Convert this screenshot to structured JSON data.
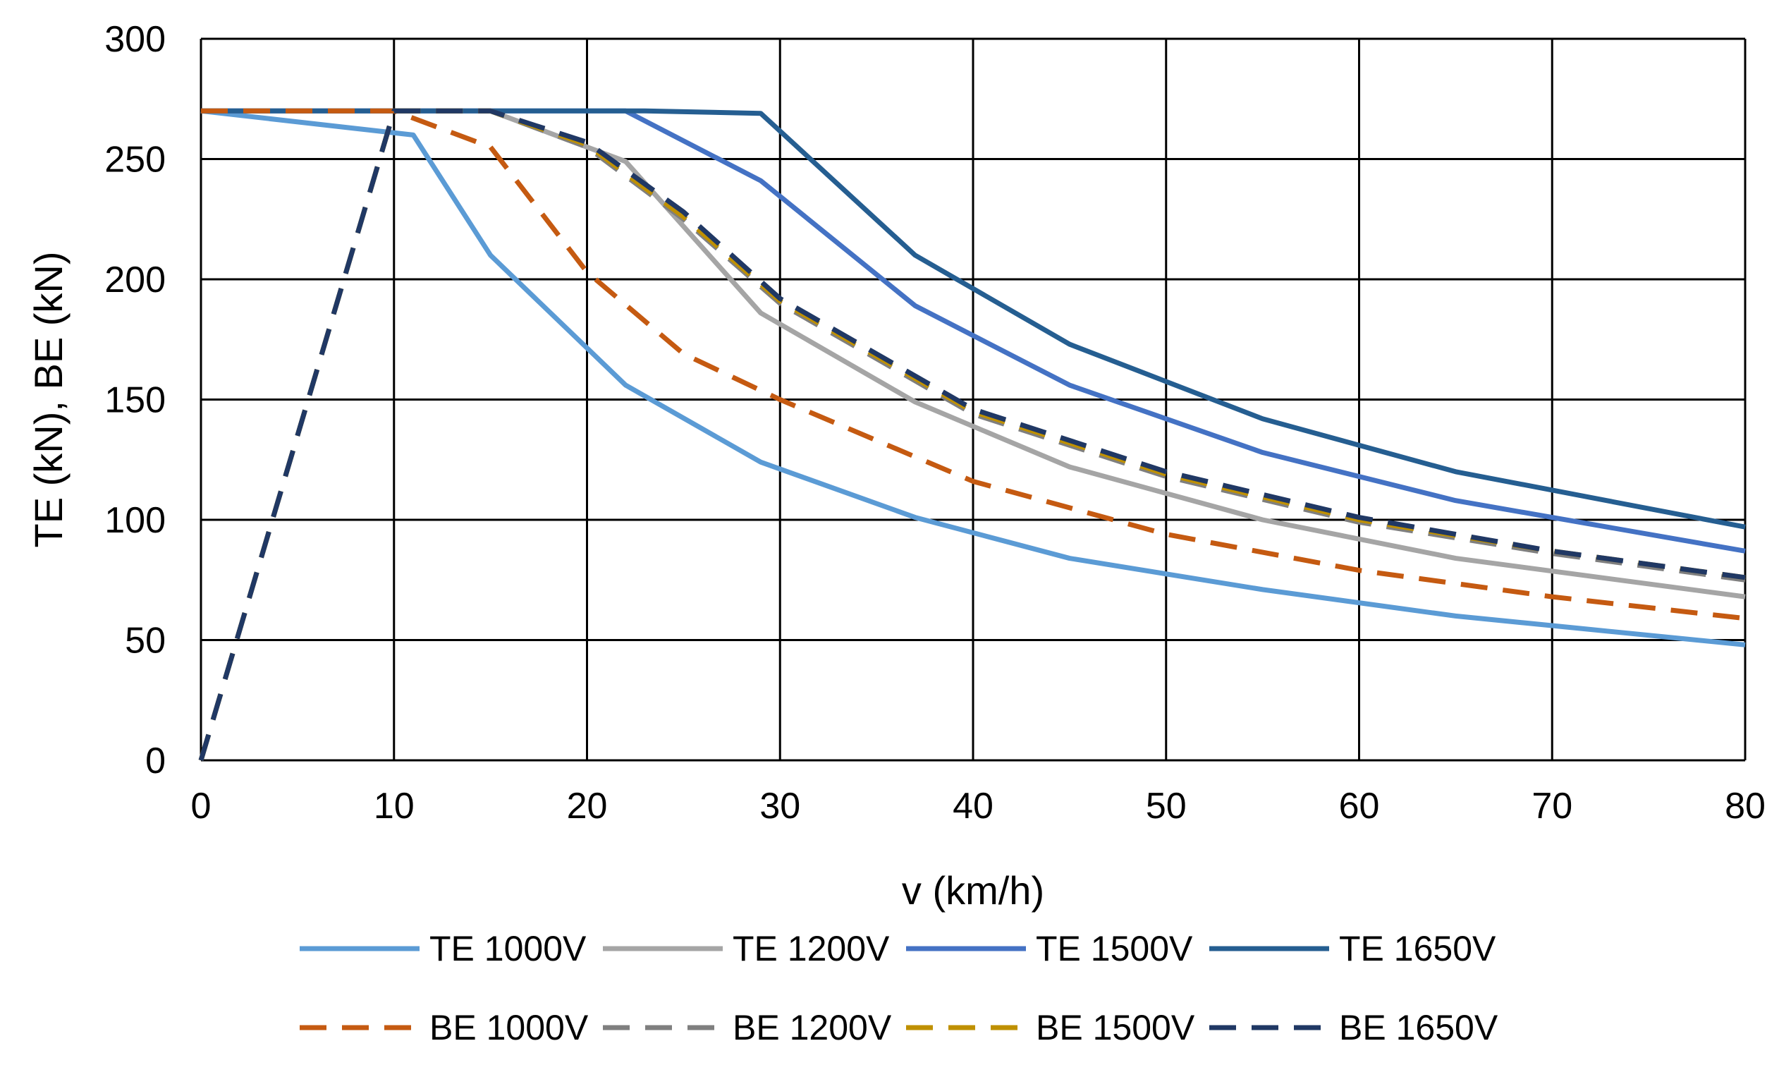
{
  "chart_data": {
    "type": "line",
    "title": "",
    "xlabel": "v (km/h)",
    "ylabel": "TE (kN), BE (kN)",
    "xlim": [
      0,
      80
    ],
    "ylim": [
      0,
      300
    ],
    "xticks": [
      0,
      10,
      20,
      30,
      40,
      50,
      60,
      70,
      80
    ],
    "yticks": [
      0,
      50,
      100,
      150,
      200,
      250,
      300
    ],
    "grid": true,
    "legend_position": "bottom",
    "series": [
      {
        "name": "TE 1000V",
        "color": "#5b9bd5",
        "dash": "solid",
        "x": [
          0,
          11,
          15,
          22,
          29,
          37,
          45,
          55,
          65,
          80
        ],
        "y": [
          270,
          260,
          210,
          156,
          124,
          101,
          84,
          71,
          60,
          48
        ]
      },
      {
        "name": "TE 1200V",
        "color": "#a5a5a5",
        "dash": "solid",
        "x": [
          0,
          15,
          22,
          29,
          37,
          45,
          55,
          65,
          80
        ],
        "y": [
          270,
          270,
          249,
          186,
          149,
          122,
          100,
          84,
          68
        ]
      },
      {
        "name": "TE 1500V",
        "color": "#4472c4",
        "dash": "solid",
        "x": [
          0,
          22,
          29,
          37,
          45,
          55,
          65,
          80
        ],
        "y": [
          270,
          270,
          241,
          189,
          156,
          128,
          108,
          87
        ]
      },
      {
        "name": "TE 1650V",
        "color": "#255e91",
        "dash": "solid",
        "x": [
          0,
          23,
          29,
          37,
          45,
          55,
          65,
          80
        ],
        "y": [
          270,
          270,
          269,
          210,
          173,
          142,
          120,
          97
        ]
      },
      {
        "name": "BE 1000V",
        "color": "#c55a11",
        "dash": "dashed",
        "x": [
          0,
          10,
          15,
          20,
          25,
          30,
          40,
          50,
          60,
          70,
          80
        ],
        "y": [
          270,
          270,
          255,
          203,
          169,
          150,
          116,
          94,
          79,
          68,
          59
        ]
      },
      {
        "name": "BE 1200V",
        "color": "#7f7f7f",
        "dash": "dashed",
        "x": [
          0,
          10,
          15,
          20,
          25,
          30,
          40,
          50,
          60,
          70,
          80
        ],
        "y": [
          0,
          270,
          270,
          255,
          225,
          190,
          144,
          118,
          99,
          86,
          75
        ]
      },
      {
        "name": "BE 1500V",
        "color": "#bf9000",
        "dash": "dashed",
        "x": [
          0,
          10,
          15,
          20,
          25,
          30,
          40,
          50,
          60,
          70,
          80
        ],
        "y": [
          0,
          270,
          270,
          256,
          226,
          191,
          145,
          119,
          100,
          87,
          76
        ]
      },
      {
        "name": "BE 1650V",
        "color": "#203864",
        "dash": "dashed",
        "x": [
          0,
          10,
          15,
          20,
          25,
          30,
          40,
          50,
          60,
          70,
          80
        ],
        "y": [
          0,
          270,
          270,
          257,
          228,
          192,
          146,
          120,
          101,
          87,
          76
        ]
      }
    ]
  }
}
